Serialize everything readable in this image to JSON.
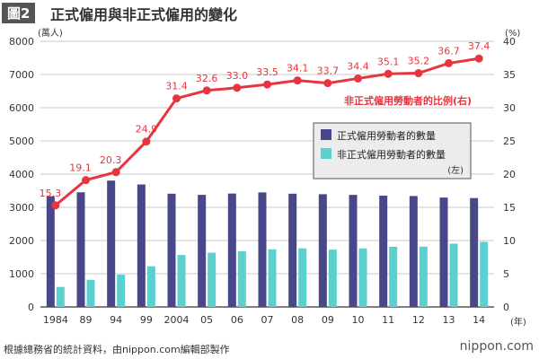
{
  "header": {
    "figure_tag": "圖2",
    "title": "正式僱用與非正式僱用的變化"
  },
  "footer": {
    "source": "根據總務省的統計資料，由nippon.com編輯部製作",
    "logo": "nippon.com"
  },
  "chart_data": {
    "type": "bar+line",
    "title": "正式僱用與非正式僱用的變化",
    "categories": [
      "1984",
      "89",
      "94",
      "99",
      "2004",
      "05",
      "06",
      "07",
      "08",
      "09",
      "10",
      "11",
      "12",
      "13",
      "14"
    ],
    "xlabel": "(年)",
    "ylabel_left": "(萬人)",
    "ylabel_right": "(%)",
    "ylim_left": [
      0,
      8000
    ],
    "yticks_left": [
      0,
      1000,
      2000,
      3000,
      4000,
      5000,
      6000,
      7000,
      8000
    ],
    "ylim_right": [
      0,
      40
    ],
    "yticks_right": [
      0,
      5,
      10,
      15,
      20,
      25,
      30,
      35,
      40
    ],
    "grid": true,
    "series": [
      {
        "name": "正式僱用勞動者的數量",
        "type": "bar",
        "axis": "left",
        "color": "#48478a",
        "values": [
          3333,
          3452,
          3805,
          3688,
          3410,
          3375,
          3415,
          3449,
          3410,
          3395,
          3374,
          3352,
          3340,
          3294,
          3278
        ]
      },
      {
        "name": "非正式僱用勞動者的數量",
        "type": "bar",
        "axis": "left",
        "color": "#5ccfcf",
        "values": [
          604,
          817,
          971,
          1225,
          1564,
          1634,
          1678,
          1735,
          1765,
          1727,
          1763,
          1811,
          1816,
          1906,
          1962
        ]
      },
      {
        "name": "非正式僱用勞動者的比例(右)",
        "type": "line",
        "axis": "right",
        "color": "#e8343f",
        "values": [
          15.3,
          19.1,
          20.3,
          24.9,
          31.4,
          32.6,
          33.0,
          33.5,
          34.1,
          33.7,
          34.4,
          35.1,
          35.2,
          36.7,
          37.4
        ],
        "labels": [
          "15.3",
          "19.1",
          "20.3",
          "24.9",
          "31.4",
          "32.6",
          "33.0",
          "33.5",
          "34.1",
          "33.7",
          "34.4",
          "35.1",
          "35.2",
          "36.7",
          "37.4"
        ]
      }
    ],
    "legend": {
      "placement": "center-right",
      "note": "(左)"
    }
  }
}
